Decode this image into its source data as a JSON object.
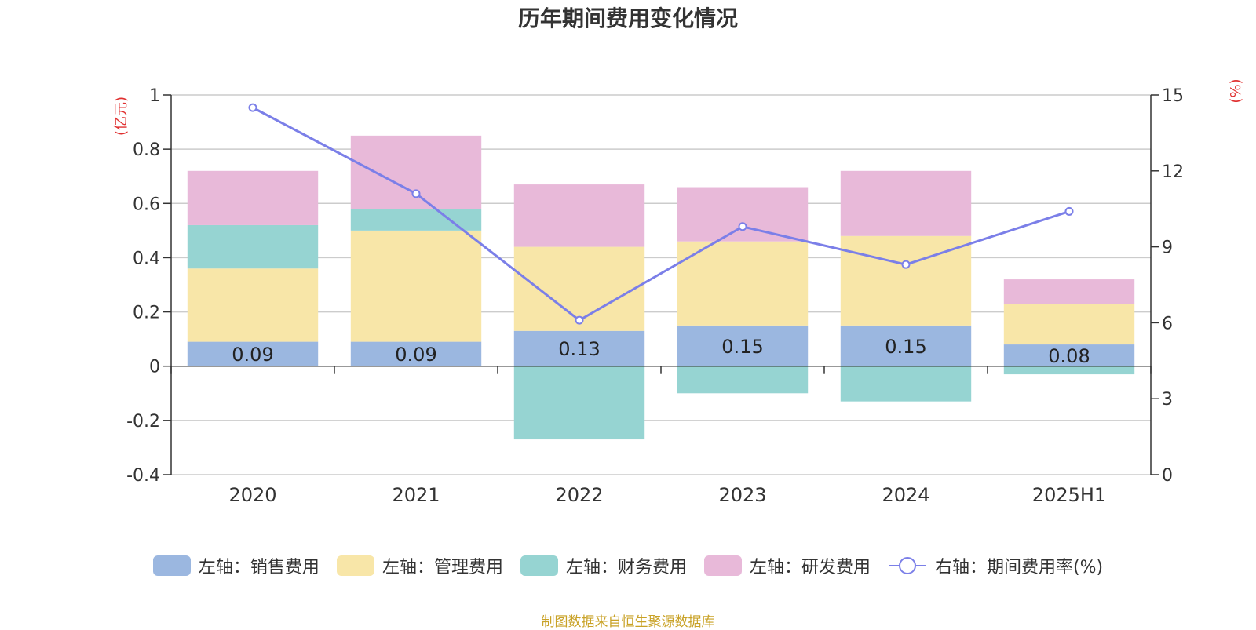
{
  "chart_data": {
    "type": "bar",
    "stacked": true,
    "title": "历年期间费用变化情况",
    "categories": [
      "2020",
      "2021",
      "2022",
      "2023",
      "2024",
      "2025H1"
    ],
    "left_axis": {
      "unit_label": "(亿元)",
      "range": [
        -0.4,
        1
      ],
      "ticks": [
        "1",
        "0.8",
        "0.6",
        "0.4",
        "0.2",
        "0",
        "-0.2",
        "-0.4"
      ],
      "tick_values": [
        1,
        0.8,
        0.6,
        0.4,
        0.2,
        0,
        -0.2,
        -0.4
      ]
    },
    "right_axis": {
      "unit_label": "(%)",
      "range": [
        0,
        15
      ],
      "ticks": [
        "15",
        "12",
        "9",
        "6",
        "3",
        "0"
      ],
      "tick_values": [
        15,
        12,
        9,
        6,
        3,
        0
      ]
    },
    "series": [
      {
        "name": "左轴：销售费用",
        "color": "#9bb7e0",
        "values": [
          0.09,
          0.09,
          0.13,
          0.15,
          0.15,
          0.08
        ],
        "labels": [
          "0.09",
          "0.09",
          "0.13",
          "0.15",
          "0.15",
          "0.08"
        ]
      },
      {
        "name": "左轴：管理费用",
        "color": "#f8e6a8",
        "values": [
          0.27,
          0.41,
          0.31,
          0.31,
          0.33,
          0.15
        ]
      },
      {
        "name": "左轴：财务费用",
        "color": "#96d4d2",
        "values": [
          0.16,
          0.08,
          -0.27,
          -0.1,
          -0.13,
          -0.03
        ]
      },
      {
        "name": "左轴：研发费用",
        "color": "#e8b9d9",
        "values": [
          0.2,
          0.27,
          0.23,
          0.2,
          0.24,
          0.09
        ]
      },
      {
        "name": "右轴：期间费用率(%)",
        "type": "line",
        "axis": "right",
        "color": "#7b7fe8",
        "values": [
          14.5,
          11.1,
          6.1,
          9.8,
          8.3,
          10.4
        ]
      }
    ],
    "grid": true,
    "legend_position": "bottom"
  },
  "source_note": "制图数据来自恒生聚源数据库"
}
